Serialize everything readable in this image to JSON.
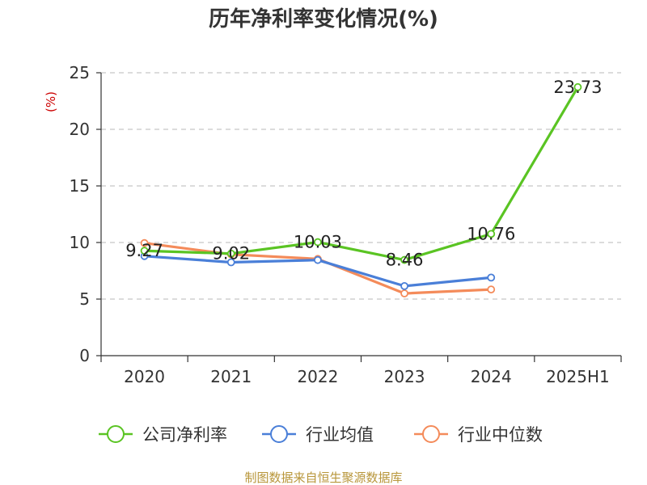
{
  "chart_data": {
    "type": "line",
    "title": "历年净利率变化情况(%)",
    "ylabel": "(%)",
    "xlabel": "",
    "categories": [
      "2020",
      "2021",
      "2022",
      "2023",
      "2024",
      "2025H1"
    ],
    "ylim": [
      0,
      25
    ],
    "yticks": [
      0,
      5,
      10,
      15,
      20,
      25
    ],
    "grid": "horizontal-dashed",
    "legend_position": "bottom",
    "series": [
      {
        "name": "公司净利率",
        "color": "#5ac423",
        "values": [
          9.27,
          9.02,
          10.03,
          8.46,
          10.76,
          23.73
        ],
        "labels": [
          "9.27",
          "9.02",
          "10.03",
          "8.46",
          "10.76",
          "23.73"
        ]
      },
      {
        "name": "行业均值",
        "color": "#4a7fd8",
        "values": [
          8.8,
          8.25,
          8.45,
          6.15,
          6.9,
          null
        ]
      },
      {
        "name": "行业中位数",
        "color": "#f48b5a",
        "values": [
          9.95,
          8.95,
          8.55,
          5.5,
          5.85,
          null
        ]
      }
    ]
  },
  "source": "制图数据来自恒生聚源数据库"
}
